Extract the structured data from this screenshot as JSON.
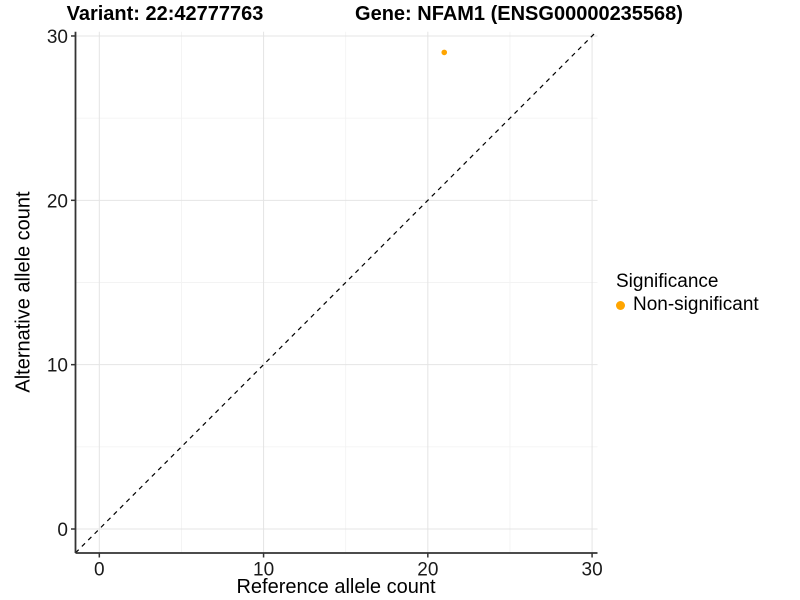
{
  "figure": {
    "title_left": "Variant: 22:42777763",
    "title_right": "Gene: NFAM1 (ENSG00000235568)"
  },
  "chart_data": {
    "type": "scatter",
    "title": "Variant: 22:42777763   Gene: NFAM1 (ENSG00000235568)",
    "xlabel": "Reference allele count",
    "ylabel": "Alternative allele count",
    "xlim": [
      0,
      30
    ],
    "ylim": [
      0,
      30
    ],
    "xticks": [
      0,
      10,
      20,
      30
    ],
    "yticks": [
      0,
      10,
      20,
      30
    ],
    "minor_gridlines": [
      5,
      15,
      25
    ],
    "grid": true,
    "series": [
      {
        "name": "Non-significant",
        "color": "#FFA500",
        "points": [
          {
            "x": 21,
            "y": 29
          }
        ]
      }
    ],
    "reference_line": {
      "type": "identity",
      "slope": 1,
      "intercept": 0,
      "style": "dashed",
      "color": "#000000"
    },
    "legend": {
      "title": "Significance",
      "position": "right",
      "entries": [
        {
          "label": "Non-significant",
          "color": "#FFA500"
        }
      ]
    },
    "colors": {
      "axis_line": "#333333",
      "tick_text": "#1a1a1a",
      "grid_major": "#e4e4e4",
      "grid_minor": "#f3f3f3",
      "point": "#FFA500"
    }
  }
}
